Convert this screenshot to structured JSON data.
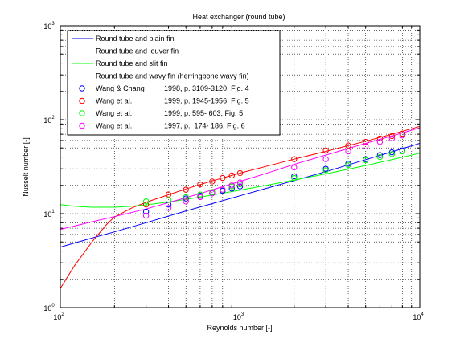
{
  "chart_data": {
    "type": "line",
    "title": "Heat exchanger (round tube)",
    "xlabel": "Reynolds number [-]",
    "ylabel": "Nusselt number [-]",
    "xscale": "log",
    "yscale": "log",
    "xlim": [
      100,
      10000
    ],
    "ylim": [
      1,
      1000
    ],
    "grid": true,
    "legend_position": "top-left",
    "x_ticks": [
      {
        "value": 100,
        "base": "10",
        "exp": "2"
      },
      {
        "value": 1000,
        "base": "10",
        "exp": "3"
      },
      {
        "value": 10000,
        "base": "10",
        "exp": "4"
      }
    ],
    "y_ticks": [
      {
        "value": 1,
        "base": "10",
        "exp": "0"
      },
      {
        "value": 10,
        "base": "10",
        "exp": "1"
      },
      {
        "value": 100,
        "base": "10",
        "exp": "2"
      },
      {
        "value": 1000,
        "base": "10",
        "exp": "3"
      }
    ],
    "series": [
      {
        "name": "Round tube and plain fin",
        "color": "#0000ff",
        "x": [
          100,
          150,
          200,
          300,
          500,
          700,
          1000,
          1500,
          2000,
          3000,
          5000,
          7000,
          10000
        ],
        "y": [
          4.4,
          5.5,
          6.4,
          8.0,
          10.7,
          12.8,
          15.5,
          19.3,
          22.5,
          28.0,
          37.5,
          45.5,
          56.0
        ]
      },
      {
        "name": "Round tube and louver fin",
        "color": "#ff0000",
        "x": [
          100,
          120,
          150,
          180,
          200,
          250,
          300,
          400,
          500,
          700,
          1000,
          1500,
          2000,
          3000,
          5000,
          7000,
          10000
        ],
        "y": [
          1.6,
          2.8,
          5.0,
          7.6,
          9.2,
          11.5,
          13.2,
          15.9,
          18.3,
          22.3,
          27.0,
          33.0,
          38.0,
          46.0,
          59.0,
          70.0,
          85.0
        ]
      },
      {
        "name": "Round tube and slit fin",
        "color": "#00ff00",
        "x": [
          100,
          120,
          150,
          200,
          250,
          300,
          400,
          500,
          700,
          1000,
          1500,
          2000,
          3000,
          5000,
          7000,
          10000
        ],
        "y": [
          12.5,
          12.0,
          11.7,
          11.7,
          12.0,
          12.4,
          13.3,
          14.2,
          15.8,
          17.8,
          20.5,
          22.8,
          26.5,
          32.5,
          37.5,
          44.0
        ]
      },
      {
        "name": "Round tube and wavy fin (herringbone wavy fin)",
        "color": "#ff00ff",
        "x": [
          100,
          150,
          200,
          300,
          500,
          700,
          1000,
          1500,
          2000,
          3000,
          5000,
          7000,
          10000
        ],
        "y": [
          6.8,
          8.2,
          9.3,
          11.2,
          14.8,
          17.9,
          22.0,
          28.0,
          33.5,
          42.0,
          56.0,
          67.0,
          82.0
        ]
      },
      {
        "name": "Wang & Chang",
        "source": "1998, p. 3109-3120, Fig. 4",
        "marker": "circle",
        "color": "#0000ff",
        "x": [
          300,
          400,
          500,
          600,
          700,
          800,
          900,
          1000,
          2000,
          3000,
          4000,
          5000,
          6000,
          7000,
          8000
        ],
        "y": [
          10.5,
          12.5,
          14.5,
          15.5,
          16.5,
          17.5,
          18.5,
          19.5,
          25.0,
          30.0,
          34.0,
          38.0,
          42.0,
          45.0,
          47.0
        ]
      },
      {
        "name": "Wang et al.",
        "source": "1999, p. 1945-1956, Fig. 5",
        "marker": "circle",
        "color": "#ff0000",
        "x": [
          300,
          400,
          500,
          600,
          700,
          800,
          900,
          1000,
          2000,
          3000,
          4000,
          5000,
          6000,
          7000,
          8000
        ],
        "y": [
          12.5,
          16.0,
          18.0,
          20.5,
          22.0,
          24.0,
          25.5,
          27.0,
          38.0,
          47.0,
          53.0,
          58.0,
          63.0,
          67.0,
          71.0
        ]
      },
      {
        "name": "Wang et al.",
        "source": "1999, p. 595- 603, Fig. 5",
        "marker": "circle",
        "color": "#00ff00",
        "x": [
          300,
          400,
          500,
          600,
          700,
          800,
          900,
          1000,
          2000,
          3000,
          4000,
          5000,
          6000,
          7000,
          8000
        ],
        "y": [
          13.5,
          14.0,
          15.0,
          16.0,
          17.0,
          18.0,
          19.5,
          20.5,
          24.0,
          29.0,
          33.0,
          37.0,
          40.0,
          43.0,
          46.0
        ]
      },
      {
        "name": "Wang et al.",
        "source": "1997, p.  174- 186, Fig. 6",
        "marker": "circle",
        "color": "#ff00ff",
        "x": [
          300,
          400,
          500,
          600,
          700,
          800,
          900,
          1000,
          2000,
          3000,
          4000,
          5000,
          6000,
          7000,
          8000
        ],
        "y": [
          9.5,
          11.5,
          13.5,
          15.0,
          16.5,
          18.0,
          20.0,
          21.5,
          31.0,
          38.0,
          46.0,
          52.0,
          58.0,
          63.0,
          68.0
        ]
      }
    ]
  }
}
